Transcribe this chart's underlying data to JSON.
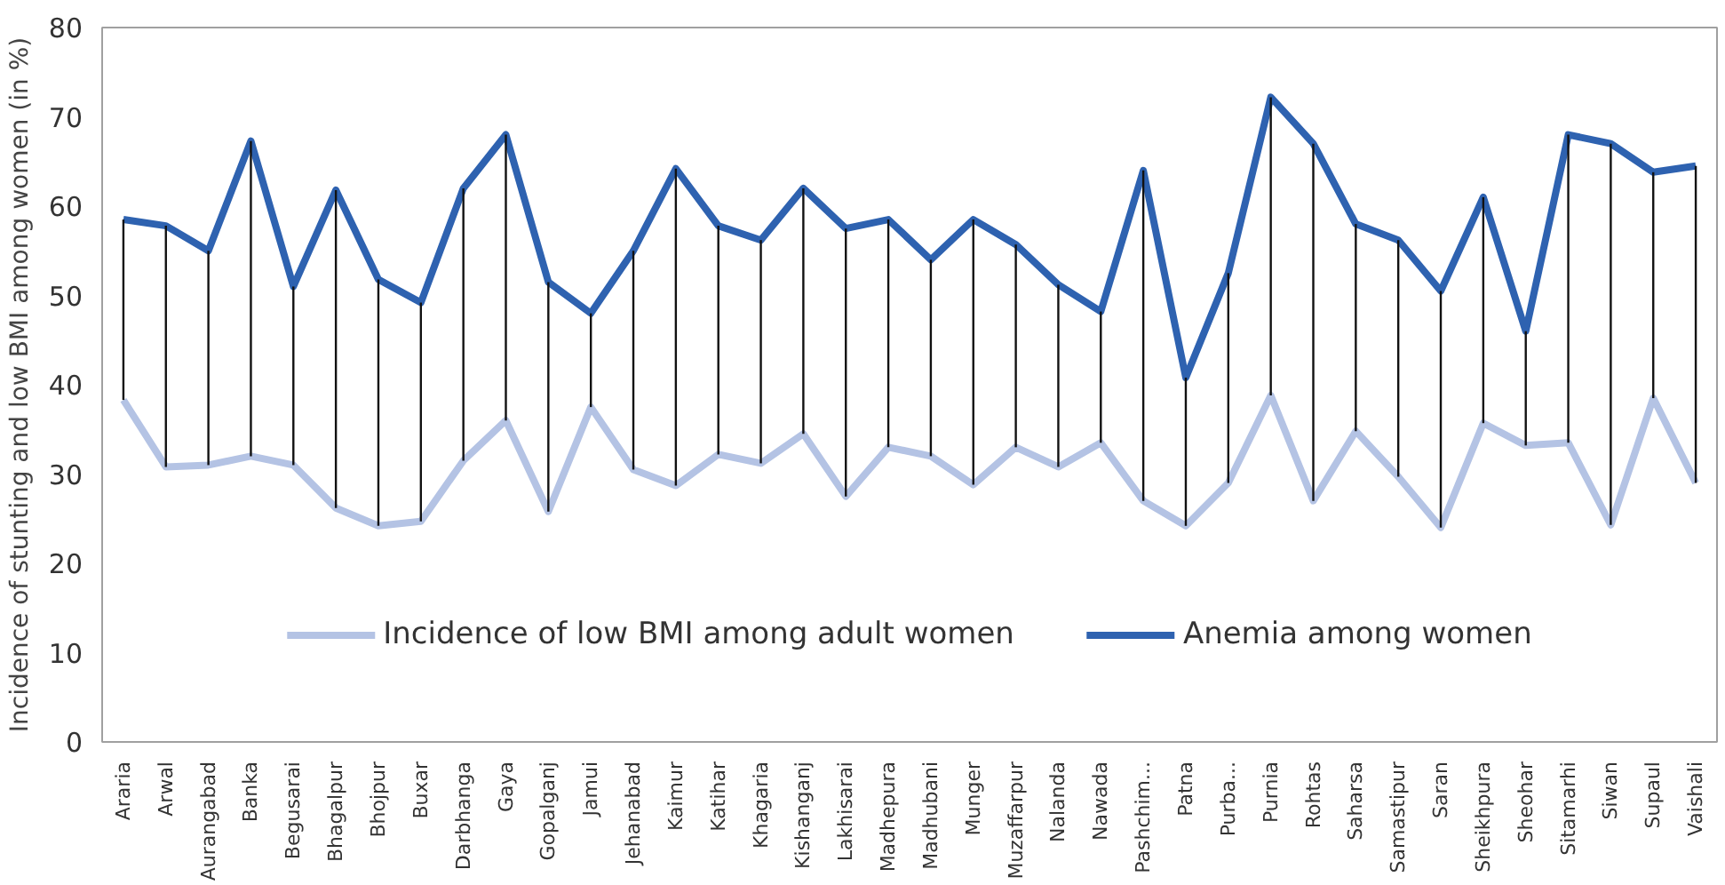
{
  "chart_data": {
    "type": "line",
    "ylabel": "Incidence of stunting and low BMI among women (in %)",
    "categories": [
      "Araria",
      "Arwal",
      "Aurangabad",
      "Banka",
      "Begusarai",
      "Bhagalpur",
      "Bhojpur",
      "Buxar",
      "Darbhanga",
      "Gaya",
      "Gopalganj",
      "Jamui",
      "Jehanabad",
      "Kaimur",
      "Katihar",
      "Khagaria",
      "Kishanganj",
      "Lakhisarai",
      "Madhepura",
      "Madhubani",
      "Munger",
      "Muzaffarpur",
      "Nalanda",
      "Nawada",
      "Pashchim...",
      "Patna",
      "Purba...",
      "Purnia",
      "Rohtas",
      "Saharsa",
      "Samastipur",
      "Saran",
      "Sheikhpura",
      "Sheohar",
      "Sitamarhi",
      "Siwan",
      "Supaul",
      "Vaishali"
    ],
    "series": [
      {
        "name": "Incidence of low BMI among adult women",
        "color": "#b4c3e4",
        "values": [
          38.3,
          30.8,
          31,
          32,
          31,
          26.2,
          24.2,
          24.7,
          31.5,
          36,
          25.8,
          37.5,
          30.5,
          28.7,
          32.2,
          31.2,
          34.5,
          27.5,
          33,
          32,
          28.8,
          33,
          30.8,
          33.5,
          27,
          24.2,
          29,
          38.8,
          27,
          34.8,
          29.7,
          24,
          35.7,
          33.2,
          33.5,
          24.3,
          38.5,
          29
        ],
        "errors": [
          [
            38.3,
            58.5
          ],
          [
            30.8,
            57.8
          ],
          [
            31,
            55
          ],
          [
            32,
            67.3
          ],
          [
            31,
            51
          ],
          [
            26.2,
            61.8
          ],
          [
            24.2,
            51.8
          ],
          [
            24.7,
            49.2
          ],
          [
            31.5,
            62
          ],
          [
            36,
            68
          ],
          [
            25.8,
            51.5
          ],
          [
            37.5,
            48
          ],
          [
            30.5,
            55
          ],
          [
            28.7,
            64.2
          ],
          [
            32.2,
            57.8
          ],
          [
            31.2,
            56.2
          ],
          [
            34.5,
            62
          ],
          [
            27.5,
            57.5
          ],
          [
            33,
            58.5
          ],
          [
            32,
            54
          ],
          [
            28.8,
            58.5
          ],
          [
            33,
            55.7
          ],
          [
            30.8,
            51.2
          ],
          [
            33.5,
            48.2
          ],
          [
            27,
            64
          ],
          [
            24.2,
            40.8
          ],
          [
            29,
            52.5
          ],
          [
            38.8,
            72.2
          ],
          [
            27,
            67
          ],
          [
            34.8,
            58
          ],
          [
            29.7,
            56.2
          ],
          [
            24,
            50.5
          ],
          [
            35.7,
            61
          ],
          [
            33.2,
            46
          ],
          [
            33.5,
            68
          ],
          [
            24.3,
            67
          ],
          [
            38.5,
            63.8
          ],
          [
            29,
            64.5
          ]
        ]
      },
      {
        "name": "Anemia among women",
        "color": "#2e62b0",
        "values": [
          58.5,
          57.8,
          55,
          67.3,
          51,
          61.8,
          51.8,
          49.2,
          62,
          68,
          51.5,
          48,
          55,
          64.2,
          57.8,
          56.2,
          62,
          57.5,
          58.5,
          54,
          58.5,
          55.7,
          51.2,
          48.2,
          64,
          40.8,
          52.5,
          72.2,
          67,
          58,
          56.2,
          50.5,
          61,
          46,
          68,
          67,
          63.8,
          64.5
        ]
      }
    ],
    "ylim": [
      0,
      80
    ],
    "yticks": [
      0,
      10,
      20,
      30,
      40,
      50,
      60,
      70,
      80
    ],
    "grid": false,
    "legend": "bottom",
    "marker": "none",
    "line_style": "solid"
  }
}
